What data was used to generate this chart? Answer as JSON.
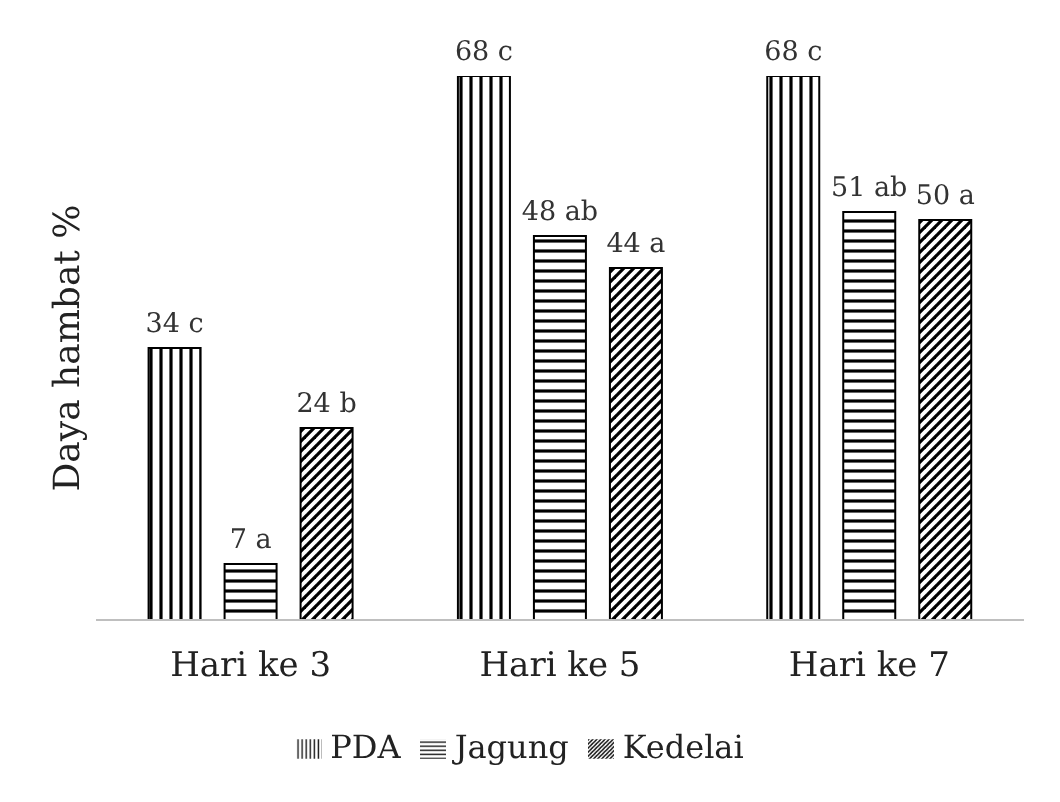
{
  "chart_data": {
    "type": "bar",
    "ylabel": "Daya hambat %",
    "categories": [
      "Hari ke 3",
      "Hari ke 5",
      "Hari ke 7"
    ],
    "series": [
      {
        "name": "PDA",
        "color": "#000000",
        "values": [
          34,
          68,
          68
        ],
        "value_labels": [
          "34 c",
          "68 c",
          "68 c"
        ]
      },
      {
        "name": "Jagung",
        "color": "#000000",
        "values": [
          7,
          48,
          51
        ],
        "value_labels": [
          "7 a",
          "48 ab",
          "51 ab"
        ]
      },
      {
        "name": "Kedelai",
        "color": "#000000",
        "values": [
          24,
          44,
          50
        ],
        "value_labels": [
          "24 b",
          "44 a",
          "50 a"
        ]
      }
    ],
    "ylim": [
      0,
      68
    ],
    "tick_labels": "x",
    "legend": "bottom"
  }
}
